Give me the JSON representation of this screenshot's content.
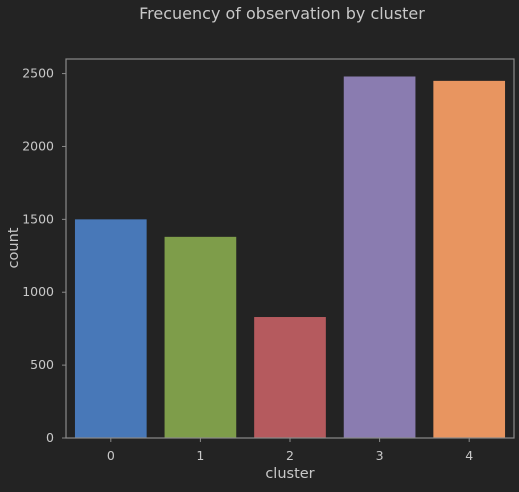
{
  "chart_data": {
    "type": "bar",
    "title": "Frecuency of observation by cluster",
    "xlabel": "cluster",
    "ylabel": "count",
    "categories": [
      "0",
      "1",
      "2",
      "3",
      "4"
    ],
    "values": [
      1500,
      1380,
      830,
      2480,
      2450
    ],
    "ylim": [
      0,
      2600
    ],
    "yticks": [
      0,
      500,
      1000,
      1500,
      2000,
      2500
    ],
    "ytick_labels": [
      "0",
      "500",
      "1000",
      "1500",
      "2000",
      "2500"
    ],
    "grid": false,
    "bar_colors": [
      "#4878b8",
      "#7e9d4a",
      "#b55a5e",
      "#8a7cb0",
      "#e89560"
    ],
    "background": "#232323",
    "text_color": "#c8c8c8",
    "frame_color": "#8a8a8a"
  }
}
